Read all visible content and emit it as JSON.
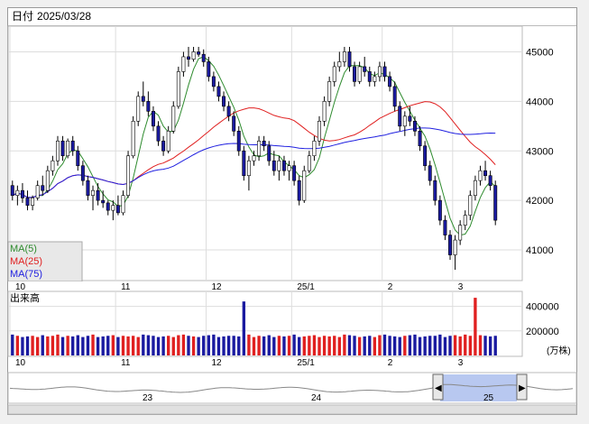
{
  "header": {
    "date_label": "日付",
    "date_value": "2025/03/28"
  },
  "price_panel": {
    "y_ticks": [
      "45000",
      "44000",
      "43000",
      "42000",
      "41000"
    ],
    "legend": [
      {
        "label": "MA(5)",
        "color": "#2e8b2e"
      },
      {
        "label": "MA(25)",
        "color": "#e02020"
      },
      {
        "label": "MA(75)",
        "color": "#2020e0"
      }
    ]
  },
  "x_labels": [
    "10",
    "11",
    "12",
    "25/1",
    "2",
    "3"
  ],
  "volume_panel": {
    "title": "出来高",
    "y_ticks": [
      "400000",
      "200000"
    ],
    "unit": "(万株)"
  },
  "navigator": {
    "year_labels": [
      "23",
      "24",
      "25"
    ],
    "left_arrow": "◀",
    "right_arrow": "▶"
  },
  "colors": {
    "up": "#ffffff",
    "down": "#1a1aa0",
    "vol_up": "#e02020",
    "vol_down": "#1a1aa0",
    "grid": "#dddddd",
    "nav_fill": "#b8c8f0"
  },
  "chart_data": {
    "type": "candlestick",
    "title": "",
    "ylim": [
      40400,
      45500
    ],
    "categories": [
      "10",
      "11",
      "12",
      "25/1",
      "2",
      "3"
    ],
    "ohlc": [
      [
        42300,
        42400,
        42000,
        42100
      ],
      [
        42100,
        42300,
        41900,
        42200
      ],
      [
        42200,
        42350,
        41950,
        42050
      ],
      [
        42050,
        42200,
        41800,
        41900
      ],
      [
        41900,
        42100,
        41800,
        42050
      ],
      [
        42050,
        42400,
        42000,
        42300
      ],
      [
        42300,
        42500,
        42100,
        42200
      ],
      [
        42200,
        42700,
        42150,
        42600
      ],
      [
        42600,
        42900,
        42500,
        42800
      ],
      [
        42800,
        43300,
        42700,
        43200
      ],
      [
        43200,
        43300,
        42800,
        42900
      ],
      [
        42900,
        43250,
        42850,
        43200
      ],
      [
        43200,
        43300,
        42900,
        43000
      ],
      [
        43000,
        43100,
        42600,
        42700
      ],
      [
        42700,
        42800,
        42300,
        42400
      ],
      [
        42400,
        42500,
        42000,
        42100
      ],
      [
        42100,
        42300,
        41800,
        42200
      ],
      [
        42200,
        42350,
        41900,
        42000
      ],
      [
        42000,
        42200,
        41850,
        41950
      ],
      [
        41950,
        42000,
        41700,
        41800
      ],
      [
        41800,
        42000,
        41600,
        41900
      ],
      [
        41900,
        42100,
        41700,
        41750
      ],
      [
        41750,
        42200,
        41700,
        42100
      ],
      [
        42100,
        43000,
        42050,
        42900
      ],
      [
        42900,
        43700,
        42850,
        43600
      ],
      [
        43600,
        44200,
        43500,
        44100
      ],
      [
        44100,
        44400,
        43900,
        44000
      ],
      [
        44000,
        44200,
        43700,
        43800
      ],
      [
        43800,
        43900,
        43400,
        43500
      ],
      [
        43500,
        43600,
        43100,
        43200
      ],
      [
        43200,
        43300,
        42900,
        43000
      ],
      [
        43000,
        43500,
        42950,
        43400
      ],
      [
        43400,
        44000,
        43350,
        43900
      ],
      [
        43900,
        44700,
        43850,
        44600
      ],
      [
        44600,
        45000,
        44500,
        44900
      ],
      [
        44900,
        45100,
        44700,
        44850
      ],
      [
        44850,
        45100,
        44800,
        45000
      ],
      [
        45000,
        45100,
        44900,
        44950
      ],
      [
        44950,
        45050,
        44700,
        44800
      ],
      [
        44800,
        44900,
        44400,
        44500
      ],
      [
        44500,
        44600,
        44200,
        44300
      ],
      [
        44300,
        44400,
        44000,
        44100
      ],
      [
        44100,
        44200,
        43800,
        43900
      ],
      [
        43900,
        44000,
        43600,
        43700
      ],
      [
        43700,
        43800,
        43300,
        43400
      ],
      [
        43400,
        43500,
        42900,
        43000
      ],
      [
        43000,
        43100,
        42400,
        42500
      ],
      [
        42500,
        42900,
        42200,
        42800
      ],
      [
        42800,
        43000,
        42700,
        42900
      ],
      [
        42900,
        43300,
        42800,
        43200
      ],
      [
        43200,
        43300,
        43000,
        43100
      ],
      [
        43100,
        43200,
        42700,
        42800
      ],
      [
        42800,
        43000,
        42500,
        42600
      ],
      [
        42600,
        42900,
        42400,
        42800
      ],
      [
        42800,
        42900,
        42500,
        42600
      ],
      [
        42600,
        42800,
        42400,
        42700
      ],
      [
        42700,
        42800,
        42300,
        42400
      ],
      [
        42400,
        42500,
        41900,
        42000
      ],
      [
        42000,
        42700,
        41950,
        42600
      ],
      [
        42600,
        43000,
        42550,
        42900
      ],
      [
        42900,
        43300,
        42800,
        43200
      ],
      [
        43200,
        43700,
        43100,
        43600
      ],
      [
        43600,
        44100,
        43500,
        44000
      ],
      [
        44000,
        44500,
        43900,
        44400
      ],
      [
        44400,
        44800,
        44300,
        44700
      ],
      [
        44700,
        45000,
        44600,
        44800
      ],
      [
        44800,
        45100,
        44700,
        45000
      ],
      [
        45000,
        45100,
        44600,
        44700
      ],
      [
        44700,
        44800,
        44300,
        44400
      ],
      [
        44400,
        44800,
        44350,
        44700
      ],
      [
        44700,
        44900,
        44500,
        44600
      ],
      [
        44600,
        44700,
        44300,
        44400
      ],
      [
        44400,
        44600,
        44300,
        44500
      ],
      [
        44500,
        44800,
        44400,
        44700
      ],
      [
        44700,
        44800,
        44400,
        44500
      ],
      [
        44500,
        44600,
        44200,
        44300
      ],
      [
        44300,
        44400,
        43800,
        43900
      ],
      [
        43900,
        44000,
        43400,
        43500
      ],
      [
        43500,
        43800,
        43300,
        43700
      ],
      [
        43700,
        43900,
        43500,
        43600
      ],
      [
        43600,
        43700,
        43300,
        43400
      ],
      [
        43400,
        43500,
        43000,
        43100
      ],
      [
        43100,
        43200,
        42600,
        42700
      ],
      [
        42700,
        42800,
        42300,
        42400
      ],
      [
        42400,
        42500,
        41900,
        42000
      ],
      [
        42000,
        42100,
        41500,
        41600
      ],
      [
        41600,
        41700,
        41200,
        41300
      ],
      [
        41300,
        41400,
        40800,
        40900
      ],
      [
        40900,
        41300,
        40600,
        41200
      ],
      [
        41200,
        41600,
        41100,
        41500
      ],
      [
        41500,
        41800,
        41400,
        41700
      ],
      [
        41700,
        42200,
        41600,
        42100
      ],
      [
        42100,
        42500,
        42000,
        42400
      ],
      [
        42400,
        42700,
        42300,
        42600
      ],
      [
        42600,
        42800,
        42400,
        42500
      ],
      [
        42500,
        42600,
        42200,
        42300
      ],
      [
        42300,
        42400,
        41500,
        41600
      ]
    ],
    "volume": [
      170000,
      160000,
      150000,
      155000,
      160000,
      150000,
      165000,
      155000,
      160000,
      170000,
      150000,
      160000,
      155000,
      165000,
      150000,
      160000,
      170000,
      150000,
      155000,
      160000,
      165000,
      150000,
      160000,
      155000,
      160000,
      150000,
      170000,
      165000,
      160000,
      150000,
      155000,
      160000,
      150000,
      165000,
      170000,
      160000,
      155000,
      150000,
      160000,
      165000,
      170000,
      150000,
      155000,
      160000,
      160000,
      155000,
      440000,
      170000,
      150000,
      160000,
      155000,
      165000,
      150000,
      160000,
      155000,
      160000,
      170000,
      150000,
      155000,
      160000,
      165000,
      150000,
      160000,
      155000,
      160000,
      150000,
      170000,
      165000,
      160000,
      150000,
      155000,
      160000,
      150000,
      165000,
      170000,
      160000,
      155000,
      150000,
      160000,
      165000,
      170000,
      150000,
      155000,
      160000,
      160000,
      170000,
      150000,
      160000,
      165000,
      155000,
      170000,
      160000,
      470000,
      165000,
      160000,
      155000,
      160000
    ],
    "vol_ylim": [
      0,
      500000
    ]
  }
}
